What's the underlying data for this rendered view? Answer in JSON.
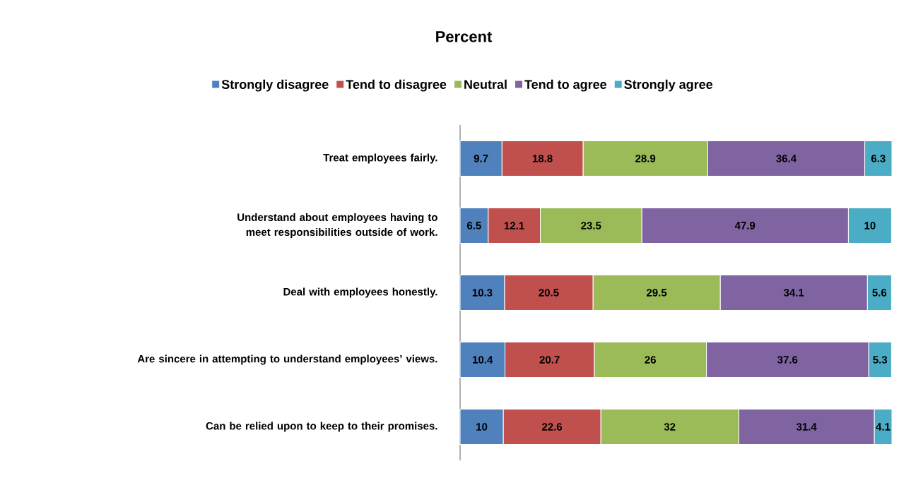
{
  "chart_data": {
    "type": "bar",
    "orientation": "horizontal",
    "stacked": true,
    "title": "Percent",
    "categories": [
      "Treat employees fairly.",
      "Understand about employees having to meet responsibilities outside of work.",
      "Deal with employees honestly.",
      "Are sincere in attempting to understand employees’ views.",
      "Can be relied upon to keep to their promises."
    ],
    "series": [
      {
        "name": "Strongly disagree",
        "color": "#4f81bd",
        "values": [
          9.7,
          6.5,
          10.3,
          10.4,
          10
        ]
      },
      {
        "name": "Tend to disagree",
        "color": "#c0504d",
        "values": [
          18.8,
          12.1,
          20.5,
          20.7,
          22.6
        ]
      },
      {
        "name": "Neutral",
        "color": "#9bbb59",
        "values": [
          28.9,
          23.5,
          29.5,
          26,
          32
        ]
      },
      {
        "name": "Tend to agree",
        "color": "#8064a2",
        "values": [
          36.4,
          47.9,
          34.1,
          37.6,
          31.4
        ]
      },
      {
        "name": "Strongly agree",
        "color": "#4bacc6",
        "values": [
          6.3,
          10,
          5.6,
          5.3,
          4.1
        ]
      }
    ],
    "data_labels": true,
    "legend": "top",
    "tick_labels": "y"
  }
}
